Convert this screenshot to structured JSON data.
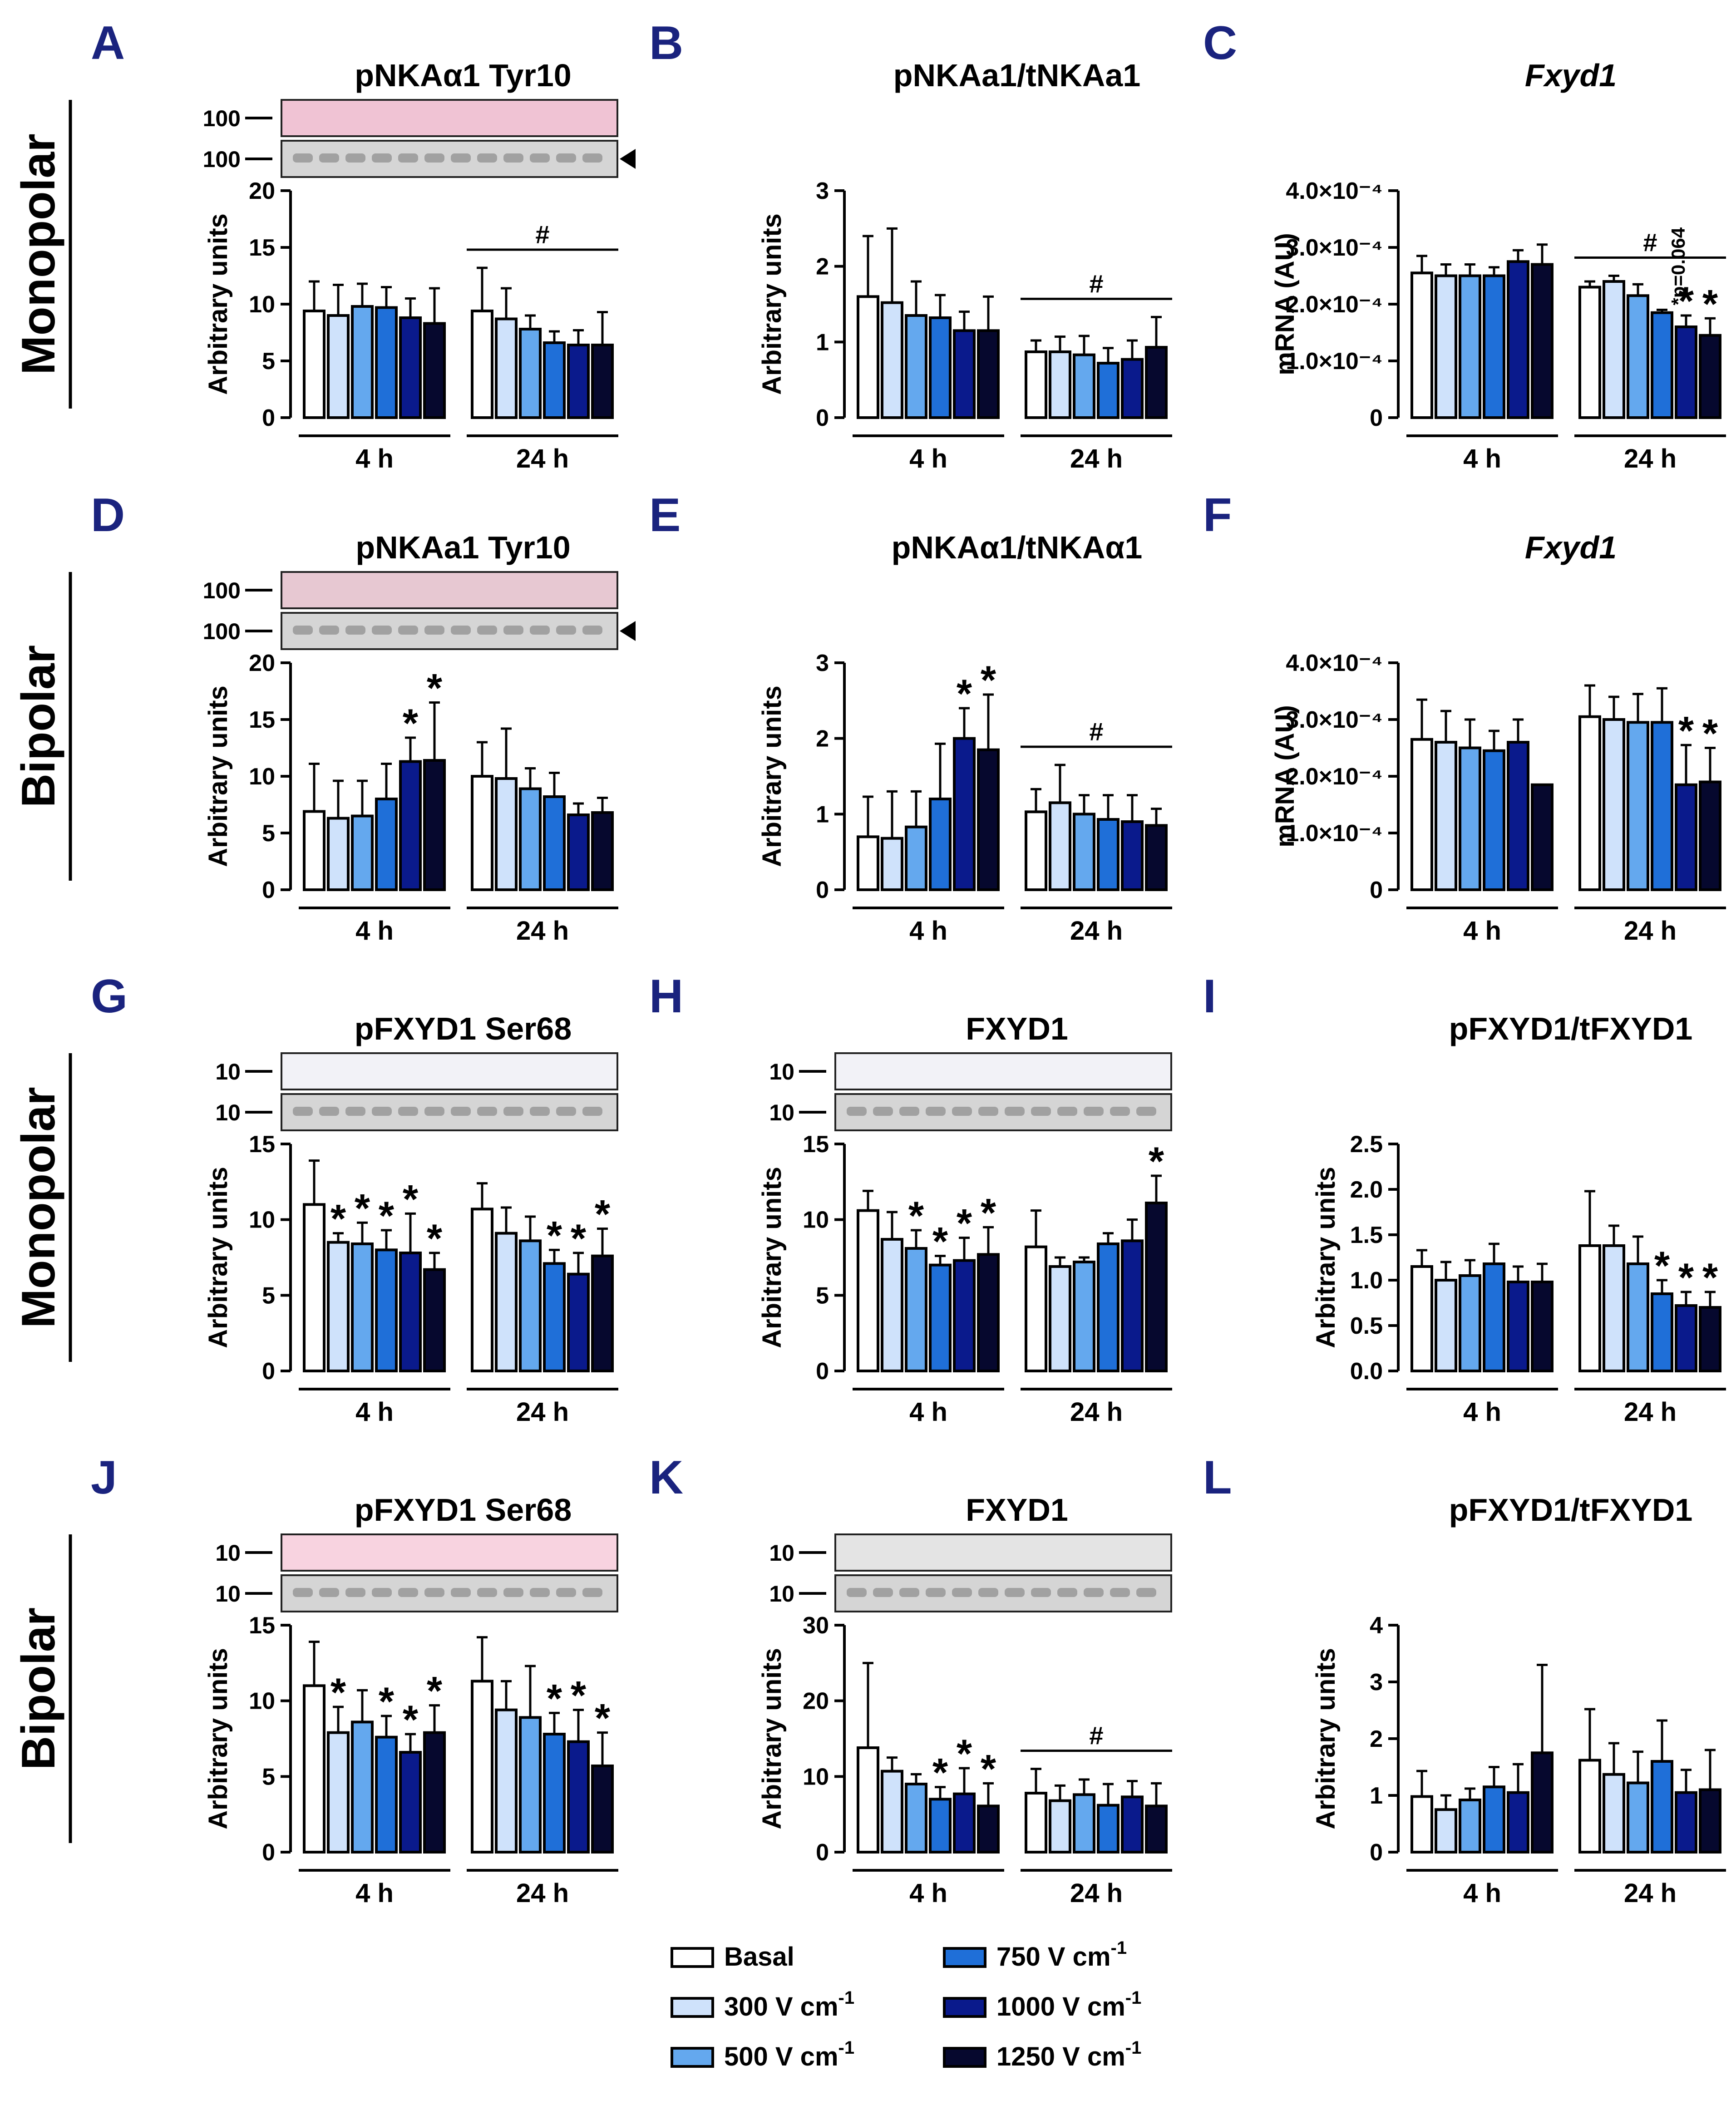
{
  "conditions": [
    {
      "label": "Basal",
      "unit": "",
      "exp": "",
      "color": "#ffffff"
    },
    {
      "label": "300 V cm",
      "unit": "",
      "exp": "-1",
      "color": "#cfe2fb"
    },
    {
      "label": "500 V cm",
      "unit": "",
      "exp": "-1",
      "color": "#64a8ee"
    },
    {
      "label": "750 V cm",
      "unit": "",
      "exp": "-1",
      "color": "#1f6fd8"
    },
    {
      "label": "1000 V cm",
      "unit": "",
      "exp": "-1",
      "color": "#0a1a8c"
    },
    {
      "label": "1250 V cm",
      "unit": "",
      "exp": "-1",
      "color": "#06082e"
    }
  ],
  "row_labels": [
    "Monopolar",
    "Bipolar",
    "Monopolar",
    "Bipolar"
  ],
  "group_labels": [
    "4 h",
    "24 h"
  ],
  "blot_marker_100": "100",
  "blot_marker_10": "10",
  "chart_data": [
    {
      "panel": "A",
      "type": "bar",
      "title": "pNKAα1 Tyr10",
      "italic": false,
      "ylabel": "Arbitrary units",
      "ylim": [
        0,
        20
      ],
      "yticks": [
        "0",
        "5",
        "10",
        "15",
        "20"
      ],
      "blot": "100",
      "series_4h": [
        9.4,
        9.0,
        9.8,
        9.7,
        8.8,
        8.3
      ],
      "err_4h": [
        2.6,
        2.7,
        2.0,
        1.8,
        1.7,
        3.1
      ],
      "series_24h": [
        9.4,
        8.7,
        7.8,
        6.6,
        6.4,
        6.4
      ],
      "err_24h": [
        3.8,
        2.7,
        1.2,
        1.0,
        1.3,
        2.9
      ],
      "stars_4h": [],
      "stars_24h": [],
      "hash": "#",
      "note": ""
    },
    {
      "panel": "B",
      "type": "bar",
      "title": "pNKAa1/tNKAa1",
      "italic": false,
      "ylabel": "Arbitrary units",
      "ylim": [
        0,
        3
      ],
      "yticks": [
        "0",
        "1",
        "2",
        "3"
      ],
      "blot": "",
      "series_4h": [
        1.6,
        1.52,
        1.35,
        1.32,
        1.15,
        1.15
      ],
      "err_4h": [
        0.8,
        0.98,
        0.45,
        0.3,
        0.25,
        0.45
      ],
      "series_24h": [
        0.87,
        0.87,
        0.83,
        0.72,
        0.77,
        0.93
      ],
      "err_24h": [
        0.15,
        0.2,
        0.25,
        0.2,
        0.25,
        0.4
      ],
      "stars_4h": [],
      "stars_24h": [],
      "hash": "#",
      "note": ""
    },
    {
      "panel": "C",
      "type": "bar",
      "title": "Fxyd1",
      "italic": true,
      "ylabel": "mRNA (AU)",
      "ylim": [
        0,
        4
      ],
      "yticks": [
        "0",
        "1.0×10⁻⁴",
        "2.0×10⁻⁴",
        "3.0×10⁻⁴",
        "4.0×10⁻⁴"
      ],
      "blot": "",
      "series_4h": [
        2.55,
        2.5,
        2.5,
        2.5,
        2.75,
        2.7
      ],
      "err_4h": [
        0.3,
        0.2,
        0.2,
        0.15,
        0.2,
        0.35
      ],
      "series_24h": [
        2.3,
        2.4,
        2.15,
        1.85,
        1.6,
        1.45
      ],
      "err_24h": [
        0.1,
        0.1,
        0.2,
        0.05,
        0.2,
        0.3
      ],
      "stars_4h": [],
      "stars_24h": [
        4,
        5
      ],
      "hash": "#",
      "note": "*p=0.064"
    },
    {
      "panel": "D",
      "type": "bar",
      "title": "pNKAa1 Tyr10",
      "italic": false,
      "ylabel": "Arbitrary units",
      "ylim": [
        0,
        20
      ],
      "yticks": [
        "0",
        "5",
        "10",
        "15",
        "20"
      ],
      "blot": "100",
      "series_4h": [
        6.9,
        6.3,
        6.5,
        8.0,
        11.3,
        11.4
      ],
      "err_4h": [
        4.2,
        3.3,
        3.1,
        3.1,
        2.1,
        5.1
      ],
      "series_24h": [
        10.0,
        9.8,
        8.9,
        8.2,
        6.6,
        6.8
      ],
      "err_24h": [
        3.0,
        4.4,
        1.8,
        2.1,
        1.0,
        1.3
      ],
      "stars_4h": [
        4,
        5
      ],
      "stars_24h": [],
      "hash": "",
      "note": ""
    },
    {
      "panel": "E",
      "type": "bar",
      "title": "pNKAα1/tNKAα1",
      "italic": false,
      "ylabel": "Arbitrary units",
      "ylim": [
        0,
        3
      ],
      "yticks": [
        "0",
        "1",
        "2",
        "3"
      ],
      "blot": "",
      "series_4h": [
        0.7,
        0.68,
        0.83,
        1.2,
        2.0,
        1.85
      ],
      "err_4h": [
        0.53,
        0.62,
        0.47,
        0.73,
        0.4,
        0.73
      ],
      "series_24h": [
        1.03,
        1.15,
        1.0,
        0.93,
        0.9,
        0.85
      ],
      "err_24h": [
        0.3,
        0.5,
        0.25,
        0.32,
        0.35,
        0.22
      ],
      "stars_4h": [
        4,
        5
      ],
      "stars_24h": [],
      "hash": "#",
      "note": ""
    },
    {
      "panel": "F",
      "type": "bar",
      "title": "Fxyd1",
      "italic": true,
      "ylabel": "mRNA (AU)",
      "ylim": [
        0,
        4
      ],
      "yticks": [
        "0",
        "1.0×10⁻⁴",
        "2.0×10⁻⁴",
        "3.0×10⁻⁴",
        "4.0×10⁻⁴"
      ],
      "blot": "",
      "series_4h": [
        2.65,
        2.6,
        2.5,
        2.45,
        2.6,
        1.85
      ],
      "err_4h": [
        0.7,
        0.55,
        0.5,
        0.35,
        0.4,
        0.0
      ],
      "series_24h": [
        3.05,
        3.0,
        2.95,
        2.95,
        1.85,
        1.9
      ],
      "err_24h": [
        0.55,
        0.4,
        0.5,
        0.6,
        0.7,
        0.6
      ],
      "stars_4h": [],
      "stars_24h": [
        4,
        5
      ],
      "hash": "",
      "note": ""
    },
    {
      "panel": "G",
      "type": "bar",
      "title": "pFXYD1 Ser68",
      "italic": false,
      "ylabel": "Arbitrary units",
      "ylim": [
        0,
        15
      ],
      "yticks": [
        "0",
        "5",
        "10",
        "15"
      ],
      "blot": "10",
      "series_4h": [
        11.0,
        8.5,
        8.4,
        8.0,
        7.8,
        6.7
      ],
      "err_4h": [
        2.9,
        0.6,
        1.4,
        1.3,
        2.6,
        1.1
      ],
      "series_24h": [
        10.7,
        9.1,
        8.6,
        7.1,
        6.4,
        7.6
      ],
      "err_24h": [
        1.7,
        1.7,
        1.6,
        0.9,
        1.4,
        1.8
      ],
      "stars_4h": [
        1,
        2,
        3,
        4,
        5
      ],
      "stars_24h": [
        3,
        4,
        5
      ],
      "hash": "",
      "note": ""
    },
    {
      "panel": "H",
      "type": "bar",
      "title": "FXYD1",
      "italic": false,
      "ylabel": "Arbitrary units",
      "ylim": [
        0,
        15
      ],
      "yticks": [
        "0",
        "5",
        "10",
        "15"
      ],
      "blot": "10",
      "series_4h": [
        10.6,
        8.7,
        8.1,
        7.0,
        7.3,
        7.7
      ],
      "err_4h": [
        1.3,
        1.8,
        1.2,
        0.6,
        1.5,
        1.8
      ],
      "series_24h": [
        8.2,
        6.9,
        7.2,
        8.4,
        8.6,
        11.1
      ],
      "err_24h": [
        2.4,
        0.6,
        0.3,
        0.7,
        1.4,
        1.8
      ],
      "stars_4h": [
        2,
        3,
        4,
        5
      ],
      "stars_24h": [
        5
      ],
      "hash": "",
      "note": ""
    },
    {
      "panel": "I",
      "type": "bar",
      "title": "pFXYD1/tFXYD1",
      "italic": false,
      "ylabel": "Arbitrary units",
      "ylim": [
        0,
        2.5
      ],
      "yticks": [
        "0.0",
        "0.5",
        "1.0",
        "1.5",
        "2.0",
        "2.5"
      ],
      "blot": "",
      "series_4h": [
        1.15,
        1.0,
        1.05,
        1.18,
        0.98,
        0.98
      ],
      "err_4h": [
        0.18,
        0.2,
        0.17,
        0.22,
        0.17,
        0.2
      ],
      "series_24h": [
        1.38,
        1.38,
        1.18,
        0.85,
        0.72,
        0.7
      ],
      "err_24h": [
        0.6,
        0.22,
        0.3,
        0.15,
        0.15,
        0.17
      ],
      "stars_4h": [],
      "stars_24h": [
        3,
        4,
        5
      ],
      "hash": "",
      "note": ""
    },
    {
      "panel": "J",
      "type": "bar",
      "title": "pFXYD1 Ser68",
      "italic": false,
      "ylabel": "Arbitrary units",
      "ylim": [
        0,
        15
      ],
      "yticks": [
        "0",
        "5",
        "10",
        "15"
      ],
      "blot": "10",
      "series_4h": [
        11.0,
        7.9,
        8.6,
        7.6,
        6.6,
        7.9
      ],
      "err_4h": [
        2.9,
        1.7,
        2.1,
        1.4,
        1.2,
        1.8
      ],
      "series_24h": [
        11.3,
        9.4,
        8.9,
        7.8,
        7.3,
        5.7
      ],
      "err_24h": [
        2.9,
        1.9,
        3.4,
        1.4,
        2.1,
        2.2
      ],
      "stars_4h": [
        1,
        3,
        4,
        5
      ],
      "stars_24h": [
        3,
        4,
        5
      ],
      "hash": "",
      "note": ""
    },
    {
      "panel": "K",
      "type": "bar",
      "title": "FXYD1",
      "italic": false,
      "ylabel": "Arbitrary units",
      "ylim": [
        0,
        30
      ],
      "yticks": [
        "0",
        "10",
        "20",
        "30"
      ],
      "blot": "10",
      "series_4h": [
        13.8,
        10.7,
        9.0,
        7.0,
        7.7,
        6.1
      ],
      "err_4h": [
        11.2,
        1.8,
        1.3,
        1.6,
        3.4,
        3.0
      ],
      "series_24h": [
        7.8,
        6.8,
        7.6,
        6.2,
        7.3,
        6.1
      ],
      "err_24h": [
        3.2,
        2.0,
        2.0,
        2.8,
        2.1,
        3.0
      ],
      "stars_4h": [
        3,
        4,
        5
      ],
      "stars_24h": [],
      "hash": "#",
      "note": ""
    },
    {
      "panel": "L",
      "type": "bar",
      "title": "pFXYD1/tFXYD1",
      "italic": false,
      "ylabel": "Arbitrary units",
      "ylim": [
        0,
        4
      ],
      "yticks": [
        "0",
        "1",
        "2",
        "3",
        "4"
      ],
      "blot": "",
      "series_4h": [
        0.98,
        0.75,
        0.92,
        1.15,
        1.05,
        1.75
      ],
      "err_4h": [
        0.45,
        0.25,
        0.2,
        0.35,
        0.5,
        1.55
      ],
      "series_24h": [
        1.62,
        1.37,
        1.22,
        1.6,
        1.05,
        1.1
      ],
      "err_24h": [
        0.9,
        0.55,
        0.55,
        0.72,
        0.4,
        0.7
      ],
      "stars_4h": [],
      "stars_24h": [],
      "hash": "",
      "note": ""
    }
  ]
}
